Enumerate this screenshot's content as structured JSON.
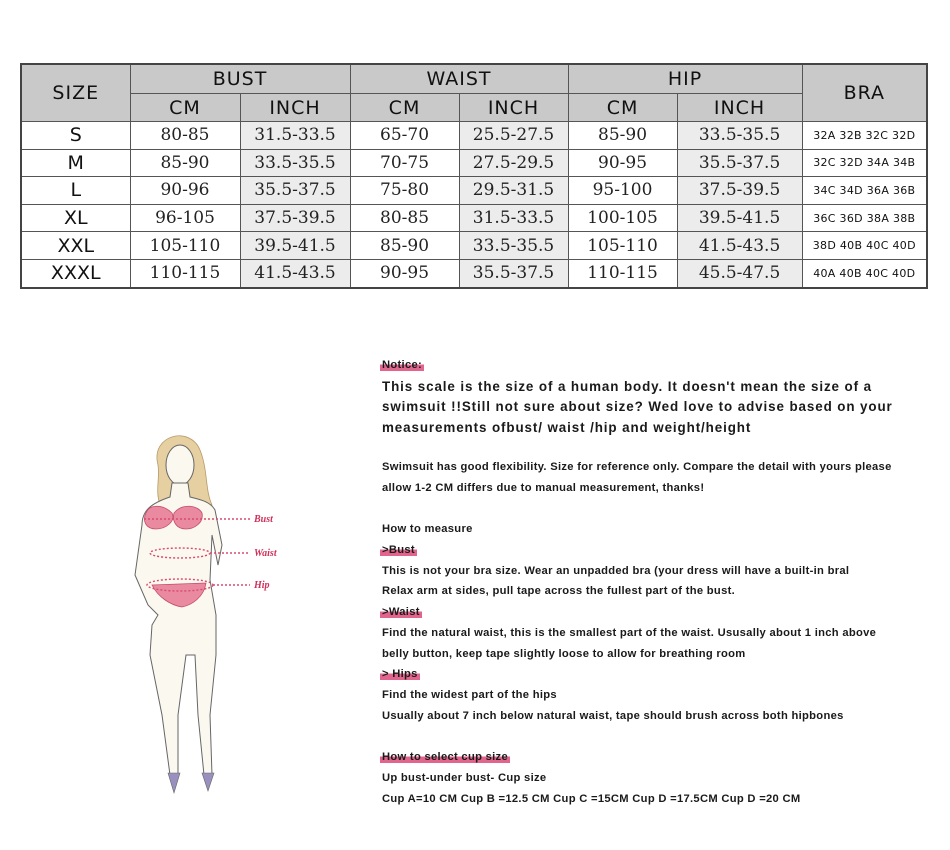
{
  "table": {
    "headers": {
      "size": "SIZE",
      "bust": "BUST",
      "waist": "WAIST",
      "hip": "HIP",
      "bra": "BRA",
      "cm": "CM",
      "inch": "INCH"
    },
    "rows": [
      {
        "size": "S",
        "bust_cm": "80-85",
        "bust_in": "31.5-33.5",
        "waist_cm": "65-70",
        "waist_in": "25.5-27.5",
        "hip_cm": "85-90",
        "hip_in": "33.5-35.5",
        "bra": "32A 32B 32C 32D"
      },
      {
        "size": "M",
        "bust_cm": "85-90",
        "bust_in": "33.5-35.5",
        "waist_cm": "70-75",
        "waist_in": "27.5-29.5",
        "hip_cm": "90-95",
        "hip_in": "35.5-37.5",
        "bra": "32C 32D 34A 34B"
      },
      {
        "size": "L",
        "bust_cm": "90-96",
        "bust_in": "35.5-37.5",
        "waist_cm": "75-80",
        "waist_in": "29.5-31.5",
        "hip_cm": "95-100",
        "hip_in": "37.5-39.5",
        "bra": "34C 34D 36A 36B"
      },
      {
        "size": "XL",
        "bust_cm": "96-105",
        "bust_in": "37.5-39.5",
        "waist_cm": "80-85",
        "waist_in": "31.5-33.5",
        "hip_cm": "100-105",
        "hip_in": "39.5-41.5",
        "bra": "36C 36D 38A 38B"
      },
      {
        "size": "XXL",
        "bust_cm": "105-110",
        "bust_in": "39.5-41.5",
        "waist_cm": "85-90",
        "waist_in": "33.5-35.5",
        "hip_cm": "105-110",
        "hip_in": "41.5-43.5",
        "bra": "38D 40B 40C 40D"
      },
      {
        "size": "XXXL",
        "bust_cm": "110-115",
        "bust_in": "41.5-43.5",
        "waist_cm": "90-95",
        "waist_in": "35.5-37.5",
        "hip_cm": "110-115",
        "hip_in": "45.5-47.5",
        "bra": "40A 40B 40C 40D"
      }
    ]
  },
  "figure": {
    "labels": {
      "bust": "Bust",
      "waist": "Waist",
      "hip": "Hip"
    }
  },
  "notes": {
    "notice_title": "Notice:",
    "notice_lines": [
      "This scale is the size of a human body. It doesn't mean the size of a",
      "swimsuit !!Still not sure about size? Wed love to advise based on your",
      "measurements ofbust/ waist /hip and weight/height"
    ],
    "flex_lines": [
      "Swimsuit has good flexibility. Size for reference only. Compare the detail with yours please",
      "allow 1-2 CM differs due to manual measurement, thanks!"
    ],
    "how_to_measure": "How to measure",
    "bust_title": ">Bust",
    "bust_lines": [
      "This is not your bra size. Wear an unpadded bra (your dress will have a built-in bral",
      "Relax arm at sides, pull tape across the fullest part of the bust."
    ],
    "waist_title": ">Waist",
    "waist_lines": [
      "Find the natural waist, this is the smallest part of the waist. Ususally about 1 inch above",
      "belly button, keep tape slightly loose to allow for breathing room"
    ],
    "hips_title": "> Hips",
    "hips_lines": [
      "Find the widest part of the hips",
      "Usually about 7 inch below natural waist, tape should brush across both hipbones"
    ],
    "cup_title": "How to select cup size",
    "cup_lines": [
      "Up bust-under bust- Cup size",
      "Cup A=10 CM Cup B =12.5 CM Cup C =15CM Cup D =17.5CM Cup D =20 CM"
    ]
  },
  "colors": {
    "header_bg": "#c9c9c9",
    "inch_bg": "#ececec",
    "highlight": "#e0648c"
  }
}
